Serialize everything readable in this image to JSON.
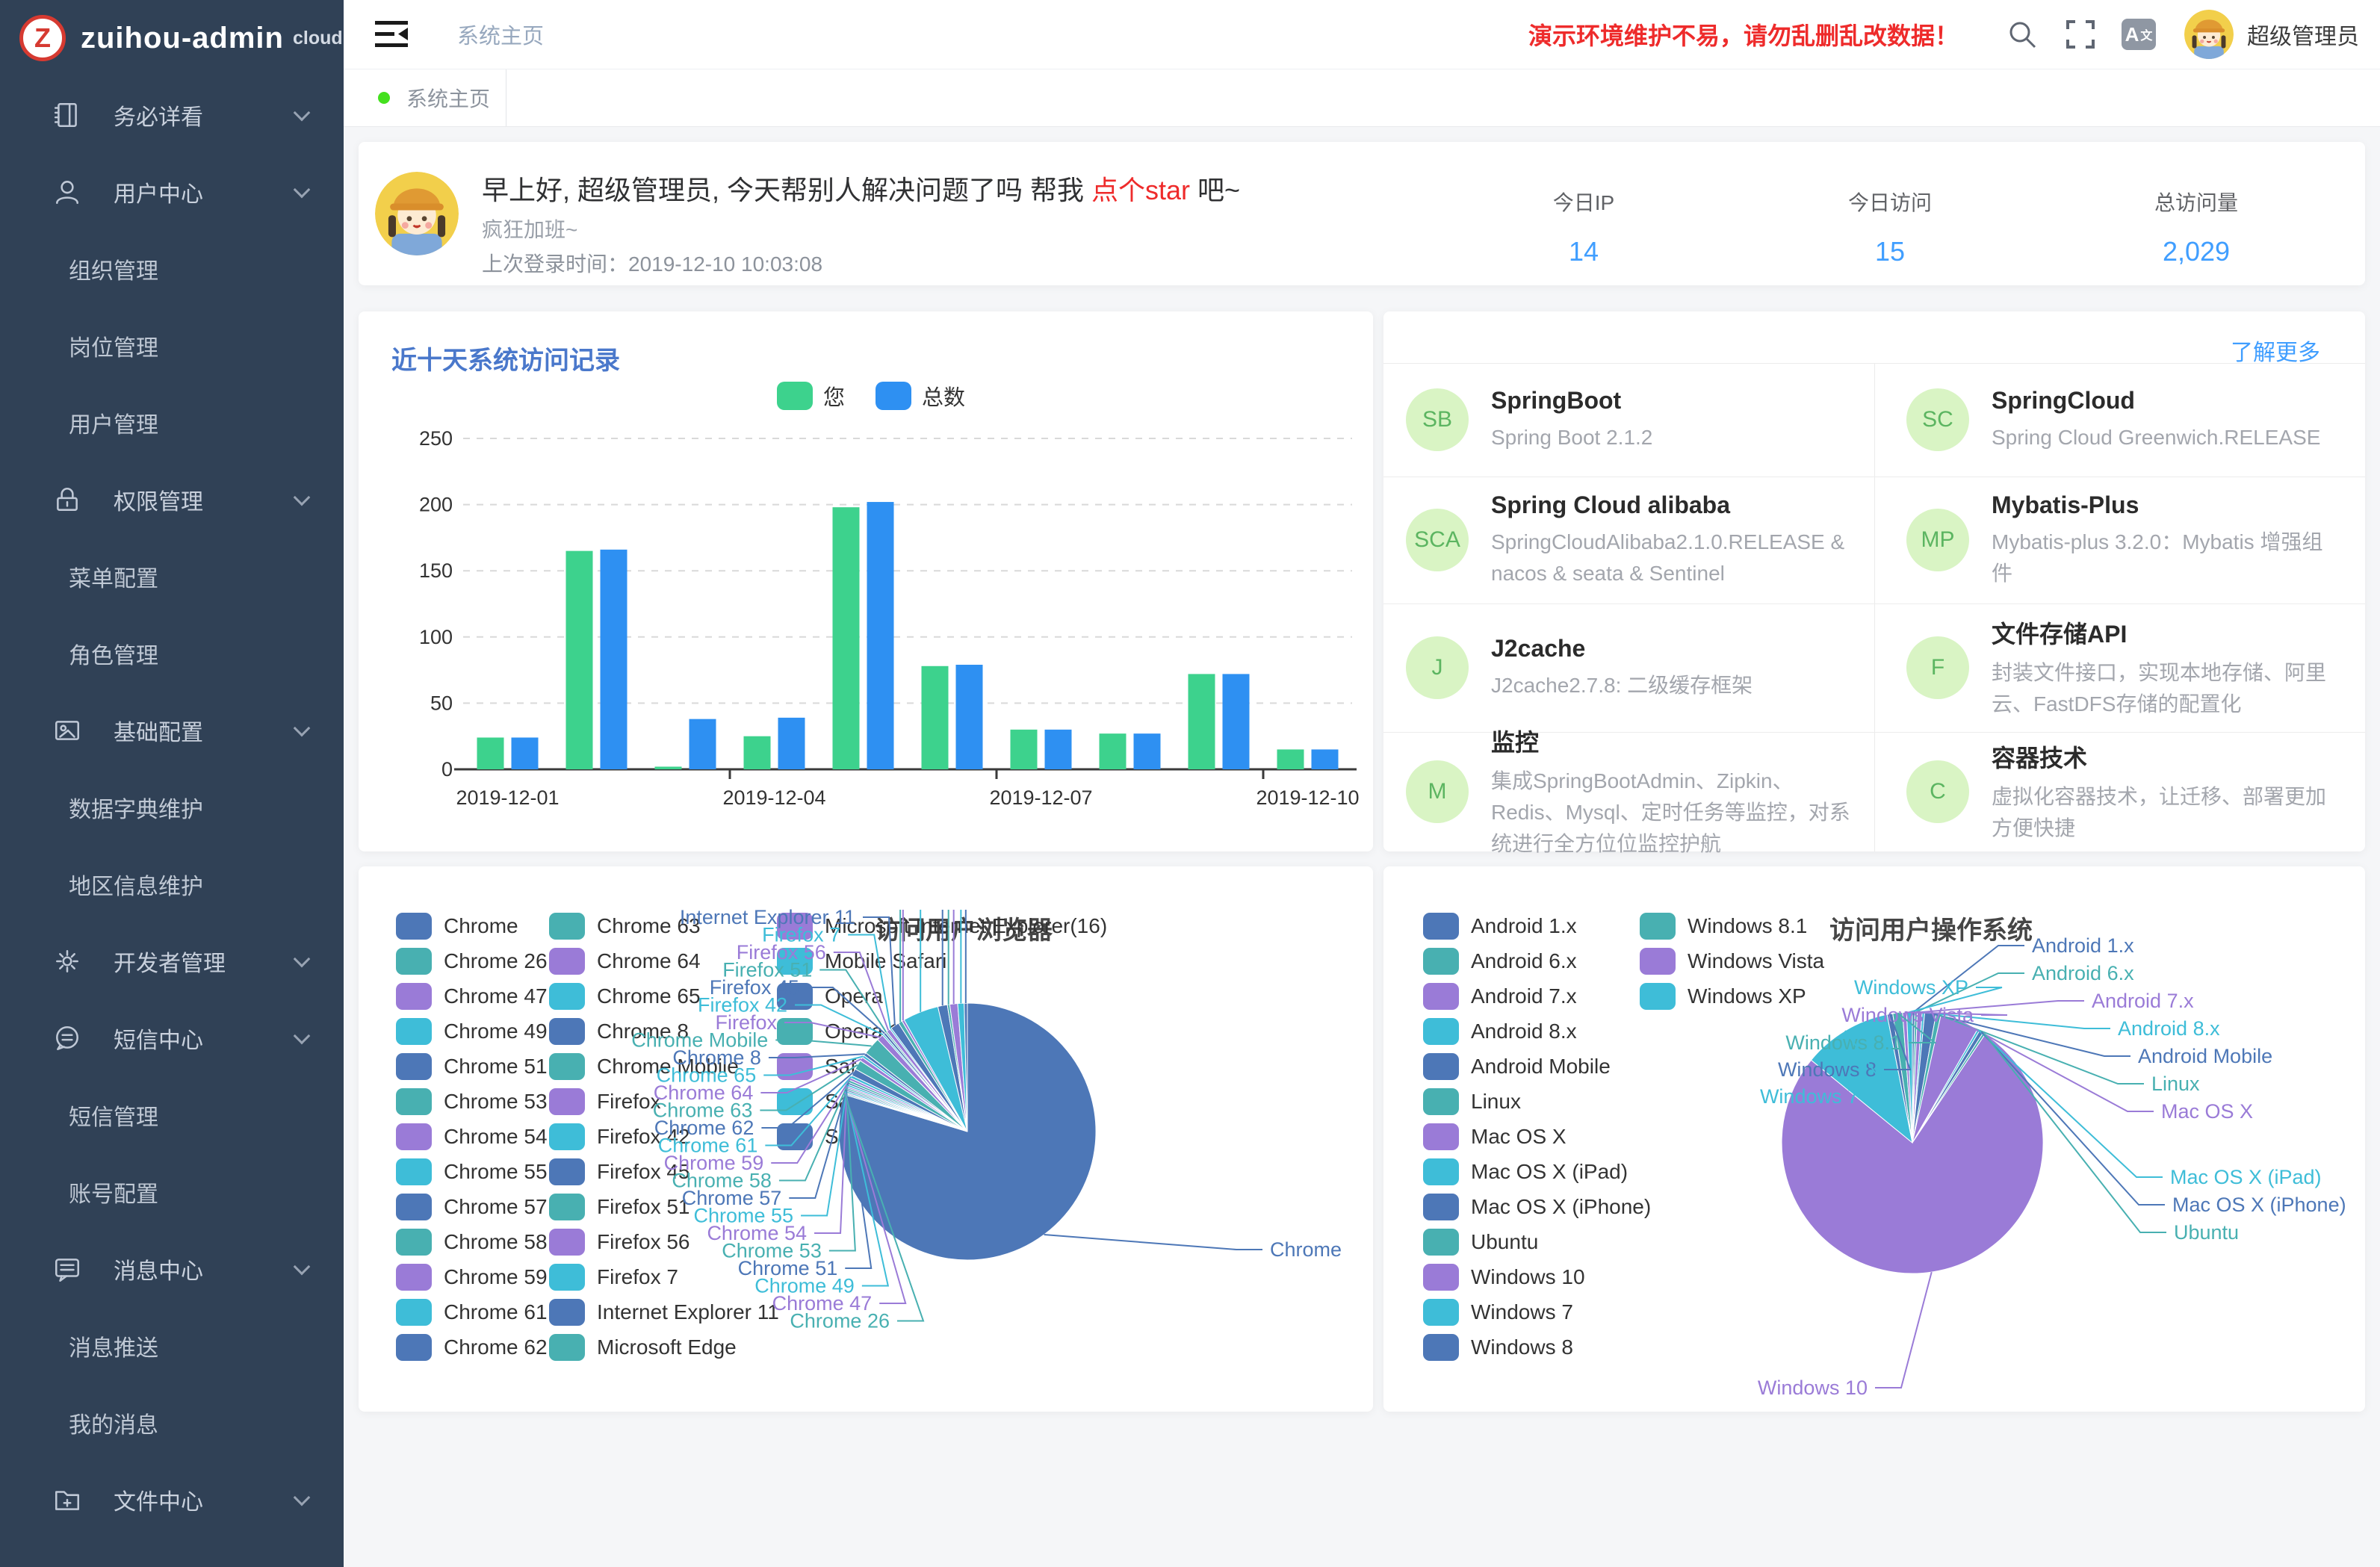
{
  "palette": [
    "#4D77B7",
    "#48B0B1",
    "#9A7BD7",
    "#3EBDD8"
  ],
  "sidebar": {
    "logo_letter": "Z",
    "logo_text": "zuihou-admin",
    "logo_suffix": "cloud",
    "menu": [
      {
        "label": "务必详看",
        "icon": "notebook-icon",
        "level": 1
      },
      {
        "label": "用户中心",
        "icon": "user-icon",
        "level": 1
      },
      {
        "label": "组织管理",
        "level": 2
      },
      {
        "label": "岗位管理",
        "level": 2
      },
      {
        "label": "用户管理",
        "level": 2
      },
      {
        "label": "权限管理",
        "icon": "lock-icon",
        "level": 1
      },
      {
        "label": "菜单配置",
        "level": 2
      },
      {
        "label": "角色管理",
        "level": 2
      },
      {
        "label": "基础配置",
        "icon": "picture-icon",
        "level": 1
      },
      {
        "label": "数据字典维护",
        "level": 2
      },
      {
        "label": "地区信息维护",
        "level": 2
      },
      {
        "label": "开发者管理",
        "icon": "gear-icon",
        "level": 1
      },
      {
        "label": "短信中心",
        "icon": "sms-icon",
        "level": 1
      },
      {
        "label": "短信管理",
        "level": 2
      },
      {
        "label": "账号配置",
        "level": 2
      },
      {
        "label": "消息中心",
        "icon": "message-icon",
        "level": 1
      },
      {
        "label": "消息推送",
        "level": 2
      },
      {
        "label": "我的消息",
        "level": 2
      },
      {
        "label": "文件中心",
        "icon": "folder-icon",
        "level": 1
      }
    ]
  },
  "header": {
    "breadcrumb": "系统主页",
    "warning": "演示环境维护不易，请勿乱删乱改数据！",
    "username": "超级管理员",
    "lang_label": "A"
  },
  "tabs": {
    "active": "系统主页"
  },
  "greeting": {
    "title_prefix": "早上好, 超级管理员, 今天帮别人解决问题了吗 帮我 ",
    "title_link": "点个star",
    "title_suffix": " 吧~",
    "subtitle": "疯狂加班~",
    "last_login_label": "上次登录时间：",
    "last_login_time": "2019-12-10 10:03:08"
  },
  "stats": [
    {
      "label": "今日IP",
      "value": "14"
    },
    {
      "label": "今日访问",
      "value": "15"
    },
    {
      "label": "总访问量",
      "value": "2,029"
    }
  ],
  "visit_chart": {
    "title": "近十天系统访问记录",
    "chart_data": {
      "type": "bar",
      "categories": [
        "2019-12-01",
        "2019-12-02",
        "2019-12-03",
        "2019-12-04",
        "2019-12-05",
        "2019-12-06",
        "2019-12-07",
        "2019-12-08",
        "2019-12-09",
        "2019-12-10"
      ],
      "series": [
        {
          "name": "您",
          "color": "#3DD28D",
          "values": [
            24,
            165,
            2,
            25,
            198,
            78,
            30,
            27,
            72,
            15
          ]
        },
        {
          "name": "总数",
          "color": "#2E90F2",
          "values": [
            24,
            166,
            38,
            39,
            202,
            79,
            30,
            27,
            72,
            15
          ]
        }
      ],
      "ylabel": "",
      "xlabel": "",
      "ylim": [
        0,
        250
      ],
      "ytick_step": 50,
      "x_labels_shown": [
        "2019-12-01",
        "2019-12-04",
        "2019-12-07",
        "2019-12-10"
      ],
      "grid": "dashed-horizontal",
      "legend_position": "top-center"
    }
  },
  "tech": {
    "more_label": "了解更多",
    "cards": [
      {
        "abbr": "SB",
        "title": "SpringBoot",
        "desc": "Spring Boot 2.1.2"
      },
      {
        "abbr": "SC",
        "title": "SpringCloud",
        "desc": "Spring Cloud Greenwich.RELEASE"
      },
      {
        "abbr": "SCA",
        "title": "Spring Cloud alibaba",
        "desc": "SpringCloudAlibaba2.1.0.RELEASE & nacos & seata & Sentinel"
      },
      {
        "abbr": "MP",
        "title": "Mybatis-Plus",
        "desc": "Mybatis-plus 3.2.0：Mybatis 增强组件"
      },
      {
        "abbr": "J",
        "title": "J2cache",
        "desc": "J2cache2.7.8: 二级缓存框架"
      },
      {
        "abbr": "F",
        "title": "文件存储API",
        "desc": "封装文件接口，实现本地存储、阿里云、FastDFS存储的配置化"
      },
      {
        "abbr": "M",
        "title": "监控",
        "desc": "集成SpringBootAdmin、Zipkin、Redis、Mysql、定时任务等监控，对系统进行全方位位监控护航"
      },
      {
        "abbr": "C",
        "title": "容器技术",
        "desc": "虚拟化容器技术，让迁移、部署更加方便快捷"
      }
    ]
  },
  "browser_chart": {
    "title": "访问用户浏览器",
    "chart_data": {
      "type": "pie",
      "unit": "percent-estimated",
      "items": [
        [
          "Chrome",
          79.65
        ],
        [
          "Chrome 26",
          0.15
        ],
        [
          "Chrome 47",
          0.15
        ],
        [
          "Chrome 49",
          0.2
        ],
        [
          "Chrome 51",
          0.2
        ],
        [
          "Chrome 53",
          0.2
        ],
        [
          "Chrome 54",
          0.2
        ],
        [
          "Chrome 55",
          0.25
        ],
        [
          "Chrome 57",
          0.25
        ],
        [
          "Chrome 58",
          0.3
        ],
        [
          "Chrome 59",
          0.3
        ],
        [
          "Chrome 61",
          0.35
        ],
        [
          "Chrome 62",
          0.9
        ],
        [
          "Chrome 63",
          1.2
        ],
        [
          "Chrome 64",
          0.5
        ],
        [
          "Chrome 65",
          0.3
        ],
        [
          "Chrome 8",
          0.4
        ],
        [
          "Chrome Mobile",
          2.2
        ],
        [
          "Firefox",
          0.8
        ],
        [
          "Firefox 42",
          0.2
        ],
        [
          "Firefox 45",
          0.3
        ],
        [
          "Firefox 51",
          0.2
        ],
        [
          "Firefox 56",
          0.5
        ],
        [
          "Firefox 7",
          0.2
        ],
        [
          "Internet Explorer 11",
          1.1
        ],
        [
          "Microsoft Edge",
          0.5
        ],
        [
          "Microsoft Internet Explorer(16)",
          0.3
        ],
        [
          "Mobile Safari",
          4.5
        ],
        [
          "Opera",
          1.2
        ],
        [
          "Opera 12",
          0.3
        ],
        [
          "Safari",
          1.0
        ],
        [
          "Safari 11",
          0.8
        ],
        [
          "Safari 9",
          0.4
        ]
      ],
      "legend_columns": [
        13,
        13,
        7
      ],
      "legend_position": "left",
      "callouts_left": [
        "Internet Explorer 11",
        "Firefox 7",
        "Firefox 56",
        "Firefox 51",
        "Firefox 45",
        "Firefox 42",
        "Firefox",
        "Chrome Mobile",
        "Chrome 8",
        "Chrome 65",
        "Chrome 64",
        "Chrome 63",
        "Chrome 62",
        "Chrome 61",
        "Chrome 59",
        "Chrome 58",
        "Chrome 57",
        "Chrome 55",
        "Chrome 54",
        "Chrome 53",
        "Chrome 51",
        "Chrome 49",
        "Chrome 47",
        "Chrome 26"
      ],
      "callout_right": "Chrome",
      "uplines": [
        "Microsoft Edge",
        "Microsoft Internet Explorer(16)",
        "Mobile Safari",
        "Opera",
        "Opera 12",
        "Safari",
        "Safari 11",
        "Safari 9"
      ]
    }
  },
  "os_chart": {
    "title": "访问用户操作系统",
    "chart_data": {
      "type": "pie",
      "unit": "percent-estimated",
      "items": [
        [
          "Android 1.x",
          0.3
        ],
        [
          "Android 6.x",
          0.3
        ],
        [
          "Android 7.x",
          0.6
        ],
        [
          "Android 8.x",
          0.3
        ],
        [
          "Android Mobile",
          1.4
        ],
        [
          "Linux",
          0.6
        ],
        [
          "Mac OS X",
          4.8
        ],
        [
          "Mac OS X (iPad)",
          0.3
        ],
        [
          "Mac OS X (iPhone)",
          0.5
        ],
        [
          "Ubuntu",
          0.3
        ],
        [
          "Windows 10",
          76.5
        ],
        [
          "Windows 7",
          11.0
        ],
        [
          "Windows 8",
          0.7
        ],
        [
          "Windows 8.1",
          1.2
        ],
        [
          "Windows Vista",
          0.5
        ],
        [
          "Windows XP",
          0.7
        ]
      ],
      "legend_columns": [
        13,
        3
      ],
      "legend_position": "left",
      "callouts_right": [
        "Android 1.x",
        "Android 6.x",
        "Android 7.x",
        "Android 8.x",
        "Android Mobile",
        "Linux",
        "Mac OS X",
        "Mac OS X (iPad)",
        "Mac OS X (iPhone)",
        "Ubuntu"
      ],
      "callouts_left": [
        "Windows XP",
        "Windows Vista",
        "Windows 8.1",
        "Windows 8",
        "Windows 7"
      ],
      "callout_bottom": "Windows 10"
    }
  }
}
